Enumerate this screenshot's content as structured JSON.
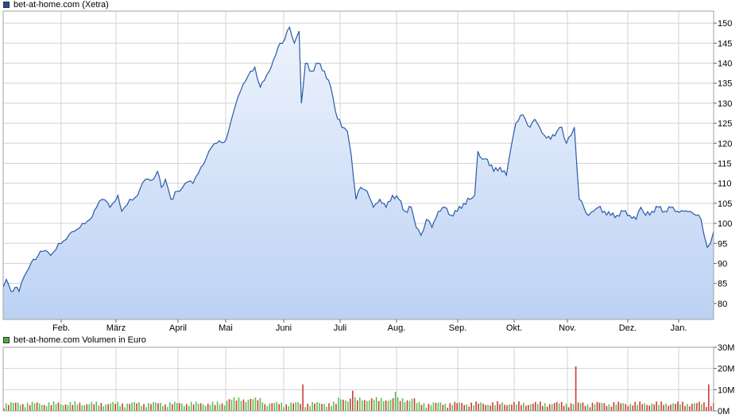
{
  "legend": {
    "price_label": "bet-at-home.com (Xetra)",
    "volume_label": "bet-at-home.com Volumen in Euro"
  },
  "colors": {
    "price_line": "#2a5aa8",
    "area_top": "#eef3fc",
    "area_bottom": "#bcd2f4",
    "grid": "#d3d3d3",
    "vol_up": "#5cc14d",
    "vol_down": "#cc3b3b"
  },
  "chart_data": [
    {
      "type": "area",
      "title": "bet-at-home.com (Xetra)",
      "x_ticks": [
        "Feb.",
        "März",
        "April",
        "Mai",
        "Juni",
        "Juli",
        "Aug.",
        "Sep.",
        "Okt.",
        "Nov.",
        "Dez.",
        "Jan."
      ],
      "ylim": [
        76,
        153
      ],
      "y_ticks": [
        80,
        85,
        90,
        95,
        100,
        105,
        110,
        115,
        120,
        125,
        130,
        135,
        140,
        145,
        150
      ],
      "grid": true,
      "y_axis_side": "right",
      "anchors": [
        [
          0,
          84
        ],
        [
          4,
          86
        ],
        [
          10,
          83
        ],
        [
          15,
          84
        ],
        [
          20,
          83
        ],
        [
          30,
          88
        ],
        [
          38,
          91
        ],
        [
          50,
          93
        ],
        [
          60,
          92
        ],
        [
          70,
          95
        ],
        [
          80,
          96
        ],
        [
          90,
          98
        ],
        [
          100,
          100
        ],
        [
          110,
          101
        ],
        [
          118,
          104
        ],
        [
          125,
          106
        ],
        [
          135,
          104
        ],
        [
          145,
          107
        ],
        [
          150,
          103
        ],
        [
          160,
          106
        ],
        [
          170,
          107
        ],
        [
          180,
          111
        ],
        [
          190,
          111
        ],
        [
          195,
          113
        ],
        [
          200,
          109
        ],
        [
          205,
          111
        ],
        [
          212,
          106
        ],
        [
          220,
          108
        ],
        [
          230,
          110
        ],
        [
          240,
          110
        ],
        [
          250,
          114
        ],
        [
          260,
          118
        ],
        [
          270,
          120
        ],
        [
          282,
          121
        ],
        [
          290,
          127
        ],
        [
          300,
          133
        ],
        [
          310,
          137
        ],
        [
          318,
          139
        ],
        [
          325,
          134
        ],
        [
          333,
          137
        ],
        [
          342,
          141
        ],
        [
          350,
          145
        ],
        [
          356,
          146
        ],
        [
          362,
          149
        ],
        [
          368,
          145
        ],
        [
          374,
          148
        ],
        [
          377,
          130
        ],
        [
          382,
          140
        ],
        [
          390,
          138
        ],
        [
          398,
          140
        ],
        [
          406,
          138
        ],
        [
          414,
          134
        ],
        [
          420,
          128
        ],
        [
          428,
          124
        ],
        [
          435,
          123
        ],
        [
          440,
          117
        ],
        [
          446,
          106
        ],
        [
          452,
          109
        ],
        [
          460,
          108
        ],
        [
          468,
          104
        ],
        [
          476,
          106
        ],
        [
          484,
          104
        ],
        [
          492,
          107
        ],
        [
          500,
          106
        ],
        [
          508,
          103
        ],
        [
          516,
          104
        ],
        [
          522,
          99
        ],
        [
          528,
          97
        ],
        [
          535,
          101
        ],
        [
          542,
          99
        ],
        [
          550,
          103
        ],
        [
          558,
          104
        ],
        [
          566,
          102
        ],
        [
          574,
          103
        ],
        [
          582,
          105
        ],
        [
          590,
          106
        ],
        [
          596,
          107
        ],
        [
          600,
          118
        ],
        [
          606,
          116
        ],
        [
          612,
          116
        ],
        [
          620,
          113
        ],
        [
          628,
          114
        ],
        [
          636,
          112
        ],
        [
          642,
          119
        ],
        [
          648,
          125
        ],
        [
          654,
          127
        ],
        [
          660,
          126
        ],
        [
          666,
          124
        ],
        [
          672,
          126
        ],
        [
          678,
          124
        ],
        [
          684,
          122
        ],
        [
          692,
          121
        ],
        [
          700,
          123
        ],
        [
          706,
          124
        ],
        [
          712,
          120
        ],
        [
          718,
          122
        ],
        [
          722,
          124
        ],
        [
          728,
          106
        ],
        [
          734,
          104
        ],
        [
          740,
          102
        ],
        [
          746,
          103
        ],
        [
          752,
          104
        ],
        [
          760,
          103
        ],
        [
          768,
          102
        ],
        [
          776,
          102
        ],
        [
          784,
          103
        ],
        [
          792,
          102
        ],
        [
          800,
          101
        ],
        [
          806,
          104
        ],
        [
          812,
          102
        ],
        [
          820,
          103
        ],
        [
          828,
          104
        ],
        [
          836,
          103
        ],
        [
          844,
          104
        ],
        [
          852,
          103
        ],
        [
          860,
          103
        ],
        [
          868,
          103
        ],
        [
          876,
          102
        ],
        [
          882,
          101
        ],
        [
          886,
          97
        ],
        [
          890,
          94
        ],
        [
          894,
          95
        ],
        [
          898,
          98
        ]
      ]
    },
    {
      "type": "bar",
      "title": "bet-at-home.com Volumen in Euro",
      "ylim": [
        0,
        30
      ],
      "y_ticks": [
        "0M",
        "10M",
        "20M",
        "30M"
      ],
      "grid": true,
      "y_axis_side": "right",
      "spikes": [
        [
          378,
          12.5,
          "down"
        ],
        [
          440,
          9.5,
          "down"
        ],
        [
          495,
          9,
          "up"
        ],
        [
          724,
          21,
          "down"
        ],
        [
          890,
          12.5,
          "down"
        ]
      ]
    }
  ]
}
